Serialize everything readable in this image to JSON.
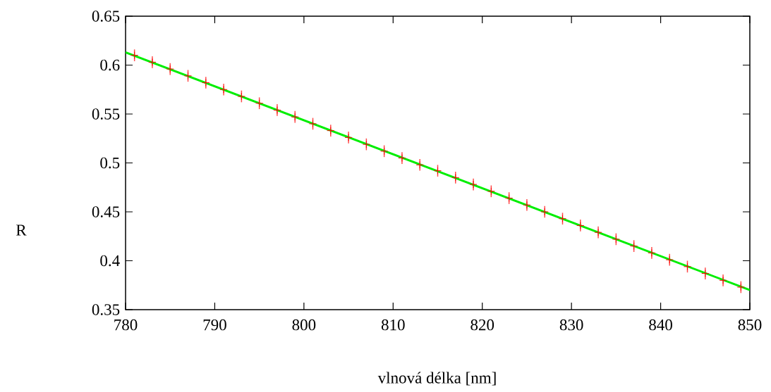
{
  "chart_data": {
    "type": "scatter",
    "xlabel": "vlnová délka [nm]",
    "ylabel": "R",
    "xlim": [
      780,
      850
    ],
    "ylim": [
      0.35,
      0.65
    ],
    "xticks": [
      780,
      790,
      800,
      810,
      820,
      830,
      840,
      850
    ],
    "yticks": [
      0.35,
      0.4,
      0.45,
      0.5,
      0.55,
      0.6,
      0.65
    ],
    "grid": false,
    "series": [
      {
        "type": "scatter",
        "color": "#ff0000",
        "marker": "cross",
        "x": [
          781,
          783,
          785,
          787,
          789,
          791,
          793,
          795,
          797,
          799,
          801,
          803,
          805,
          807,
          809,
          811,
          813,
          815,
          817,
          819,
          821,
          823,
          825,
          827,
          829,
          831,
          833,
          835,
          837,
          839,
          841,
          843,
          845,
          847,
          849
        ],
        "values": [
          0.61,
          0.603,
          0.596,
          0.589,
          0.582,
          0.575,
          0.568,
          0.561,
          0.554,
          0.547,
          0.54,
          0.533,
          0.526,
          0.519,
          0.512,
          0.505,
          0.498,
          0.492,
          0.485,
          0.478,
          0.471,
          0.464,
          0.457,
          0.45,
          0.443,
          0.436,
          0.429,
          0.422,
          0.415,
          0.408,
          0.401,
          0.394,
          0.387,
          0.38,
          0.373
        ],
        "errors": [
          0.006,
          0.006,
          0.006,
          0.006,
          0.006,
          0.006,
          0.006,
          0.006,
          0.006,
          0.006,
          0.006,
          0.006,
          0.006,
          0.006,
          0.006,
          0.006,
          0.006,
          0.006,
          0.006,
          0.006,
          0.006,
          0.006,
          0.006,
          0.006,
          0.006,
          0.006,
          0.006,
          0.006,
          0.006,
          0.006,
          0.006,
          0.006,
          0.006,
          0.006,
          0.006
        ]
      },
      {
        "type": "line",
        "color": "#00ee00",
        "marker": "none",
        "line_style": "solid",
        "x": [
          780,
          850
        ],
        "values": [
          0.613,
          0.37
        ]
      }
    ]
  }
}
